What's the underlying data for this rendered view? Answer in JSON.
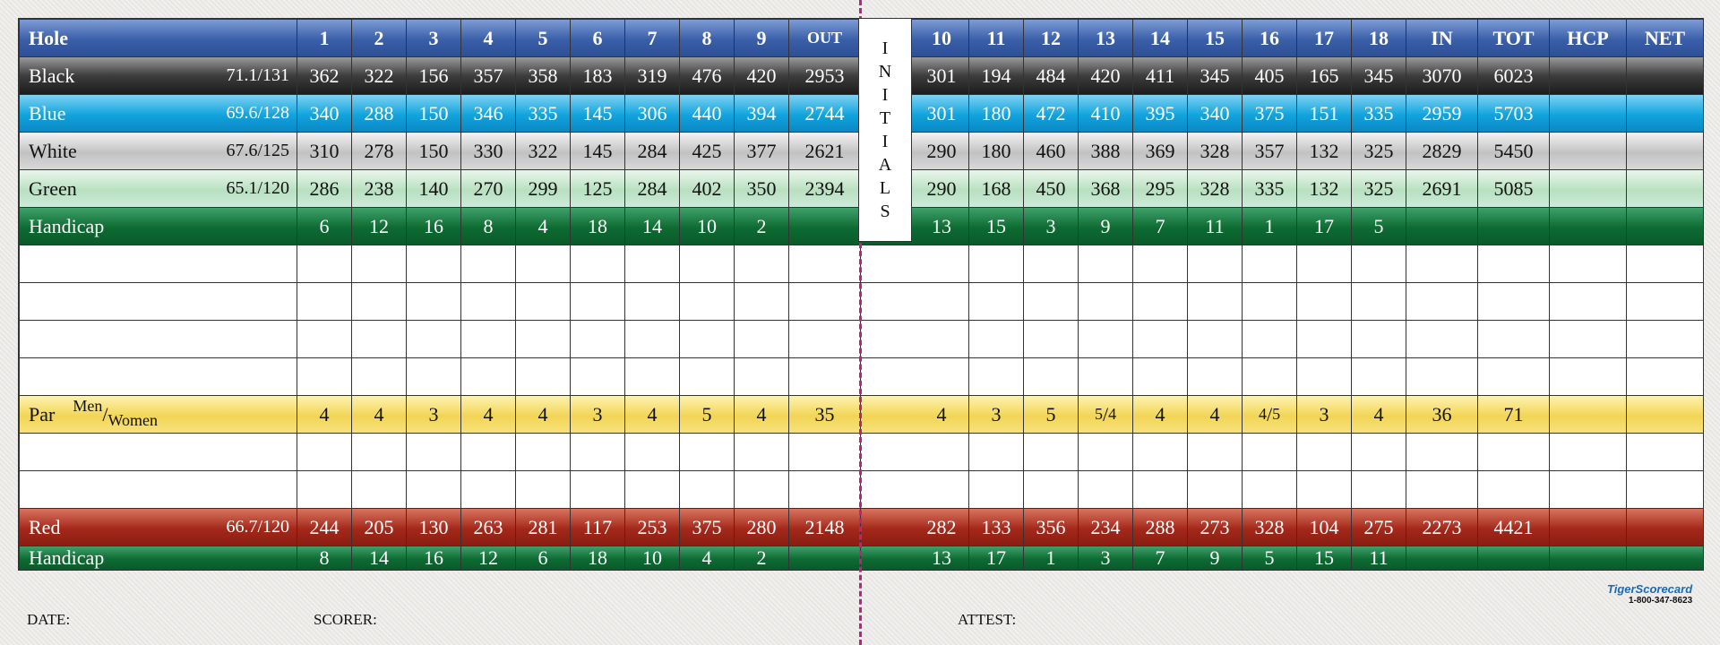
{
  "header": {
    "label": "Hole",
    "front": [
      "1",
      "2",
      "3",
      "4",
      "5",
      "6",
      "7",
      "8",
      "9"
    ],
    "out": "OUT",
    "back": [
      "10",
      "11",
      "12",
      "13",
      "14",
      "15",
      "16",
      "17",
      "18"
    ],
    "in": "IN",
    "tot": "TOT",
    "hcp": "HCP",
    "net": "NET"
  },
  "tees": {
    "black": {
      "name": "Black",
      "rating": "71.1/131",
      "front": [
        "362",
        "322",
        "156",
        "357",
        "358",
        "183",
        "319",
        "476",
        "420"
      ],
      "out": "2953",
      "back": [
        "301",
        "194",
        "484",
        "420",
        "411",
        "345",
        "405",
        "165",
        "345"
      ],
      "in": "3070",
      "tot": "6023"
    },
    "blue": {
      "name": "Blue",
      "rating": "69.6/128",
      "front": [
        "340",
        "288",
        "150",
        "346",
        "335",
        "145",
        "306",
        "440",
        "394"
      ],
      "out": "2744",
      "back": [
        "301",
        "180",
        "472",
        "410",
        "395",
        "340",
        "375",
        "151",
        "335"
      ],
      "in": "2959",
      "tot": "5703"
    },
    "white": {
      "name": "White",
      "rating": "67.6/125",
      "front": [
        "310",
        "278",
        "150",
        "330",
        "322",
        "145",
        "284",
        "425",
        "377"
      ],
      "out": "2621",
      "back": [
        "290",
        "180",
        "460",
        "388",
        "369",
        "328",
        "357",
        "132",
        "325"
      ],
      "in": "2829",
      "tot": "5450"
    },
    "green": {
      "name": "Green",
      "rating": "65.1/120",
      "front": [
        "286",
        "238",
        "140",
        "270",
        "299",
        "125",
        "284",
        "402",
        "350"
      ],
      "out": "2394",
      "back": [
        "290",
        "168",
        "450",
        "368",
        "295",
        "328",
        "335",
        "132",
        "325"
      ],
      "in": "2691",
      "tot": "5085"
    },
    "red": {
      "name": "Red",
      "rating": "66.7/120",
      "front": [
        "244",
        "205",
        "130",
        "263",
        "281",
        "117",
        "253",
        "375",
        "280"
      ],
      "out": "2148",
      "back": [
        "282",
        "133",
        "356",
        "234",
        "288",
        "273",
        "328",
        "104",
        "275"
      ],
      "in": "2273",
      "tot": "4421"
    }
  },
  "handicap_men": {
    "label": "Handicap",
    "front": [
      "6",
      "12",
      "16",
      "8",
      "4",
      "18",
      "14",
      "10",
      "2"
    ],
    "back": [
      "13",
      "15",
      "3",
      "9",
      "7",
      "11",
      "1",
      "17",
      "5"
    ]
  },
  "handicap_women": {
    "label": "Handicap",
    "front": [
      "8",
      "14",
      "16",
      "12",
      "6",
      "18",
      "10",
      "4",
      "2"
    ],
    "back": [
      "13",
      "17",
      "1",
      "3",
      "7",
      "9",
      "5",
      "15",
      "11"
    ]
  },
  "par": {
    "label": "Par",
    "men": "Men",
    "slash": "/",
    "women": "Women",
    "front": [
      "4",
      "4",
      "3",
      "4",
      "4",
      "3",
      "4",
      "5",
      "4"
    ],
    "out": "35",
    "back": [
      "4",
      "3",
      "5",
      {
        "top": "5",
        "bottom": "4"
      },
      "4",
      "4",
      {
        "top": "4",
        "bottom": "5"
      },
      "3",
      "4"
    ],
    "in": "36",
    "tot": "71"
  },
  "initials": [
    "I",
    "N",
    "I",
    "T",
    "I",
    "A",
    "L",
    "S"
  ],
  "footer": {
    "date": "DATE:",
    "scorer": "SCORER:",
    "attest": "ATTEST:"
  },
  "logo": {
    "brand": "TigerScorecard",
    "phone": "1-800-347-8623"
  },
  "colors": {
    "hole_row": "#3a5fa8",
    "black_tee": "#2a2a2a",
    "blue_tee": "#11a3dd",
    "white_tee": "#c8c8c8",
    "green_tee": "#b8e0c0",
    "handicap_row": "#0d6b32",
    "par_row": "#f2d555",
    "red_tee": "#a3281a",
    "fold_line": "#c2207a"
  }
}
